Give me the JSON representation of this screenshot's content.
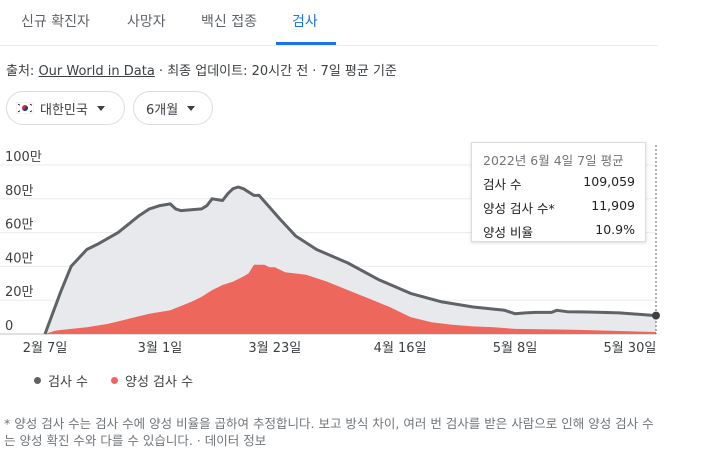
{
  "tabs": [
    "신규 확진자",
    "사망자",
    "백신 접종",
    "검사"
  ],
  "source": {
    "prefix": "출처: ",
    "link": "Our World in Data",
    "rest": " · 최종 업데이트: 20시간 전 · 7일 평균 기준"
  },
  "filters": {
    "country": "대한민국",
    "period": "6개월"
  },
  "tooltip": {
    "title": "2022년 6월 4일 7일 평균",
    "rows": [
      {
        "label": "검사 수",
        "value": "109,059"
      },
      {
        "label": "양성 검사 수*",
        "value": "11,909"
      },
      {
        "label": "양성 비율",
        "value": "10.9%"
      }
    ]
  },
  "legend": {
    "tests": "검사 수",
    "positive": "양성 검사 수"
  },
  "footnote": {
    "text": "* 양성 검사 수는 검사 수에 양성 비율을 곱하여 추정합니다. 보고 방식 차이, 여러 번 검사를 받은 사람으로 인해 양성 검사 수는 양성 확진 수와 다를 수 있습니다. · ",
    "link": "데이터 정보"
  },
  "colors": {
    "tests_line": "#5f6368",
    "tests_fill": "#e8e9ec",
    "positive": "#ee675c"
  },
  "chart_data": {
    "type": "area",
    "title": "",
    "ylim": [
      0,
      1000000
    ],
    "yticks": [
      0,
      200000,
      400000,
      600000,
      800000,
      1000000
    ],
    "ytick_labels": [
      "0",
      "20만",
      "40만",
      "60만",
      "80만",
      "100만"
    ],
    "xlim": [
      0,
      117
    ],
    "xticks": [
      0,
      22,
      44,
      68,
      90,
      112
    ],
    "xtick_labels": [
      "2월 7일",
      "3월 1일",
      "3월 23일",
      "4월 16일",
      "5월 8일",
      "5월 30일"
    ],
    "series": [
      {
        "name": "검사 수",
        "x": [
          0,
          3,
          5,
          8,
          10,
          14,
          18,
          20,
          22,
          24,
          25,
          26,
          30,
          31,
          32,
          34,
          35,
          36,
          37,
          38,
          40,
          41,
          45,
          48,
          52,
          58,
          64,
          70,
          76,
          82,
          88,
          90,
          92,
          94,
          97,
          98,
          100,
          104,
          110,
          117
        ],
        "y": [
          0,
          250000,
          400000,
          500000,
          530000,
          600000,
          700000,
          740000,
          760000,
          770000,
          740000,
          730000,
          740000,
          760000,
          800000,
          790000,
          830000,
          860000,
          870000,
          860000,
          820000,
          820000,
          680000,
          580000,
          500000,
          420000,
          320000,
          240000,
          190000,
          160000,
          140000,
          120000,
          125000,
          128000,
          128000,
          140000,
          132000,
          130000,
          125000,
          109059
        ]
      },
      {
        "name": "양성 검사 수",
        "x": [
          0,
          2,
          5,
          8,
          12,
          16,
          20,
          24,
          28,
          30,
          32,
          34,
          36,
          38,
          39,
          40,
          42,
          43,
          44,
          46,
          50,
          54,
          58,
          62,
          66,
          70,
          74,
          78,
          82,
          86,
          90,
          95,
          100,
          105,
          110,
          114,
          117
        ],
        "y": [
          0,
          20000,
          30000,
          40000,
          60000,
          90000,
          120000,
          140000,
          190000,
          220000,
          260000,
          290000,
          310000,
          340000,
          360000,
          410000,
          410000,
          395000,
          395000,
          365000,
          350000,
          310000,
          260000,
          210000,
          160000,
          100000,
          70000,
          55000,
          45000,
          40000,
          30000,
          28000,
          26000,
          22000,
          18000,
          14000,
          11909
        ]
      }
    ]
  }
}
